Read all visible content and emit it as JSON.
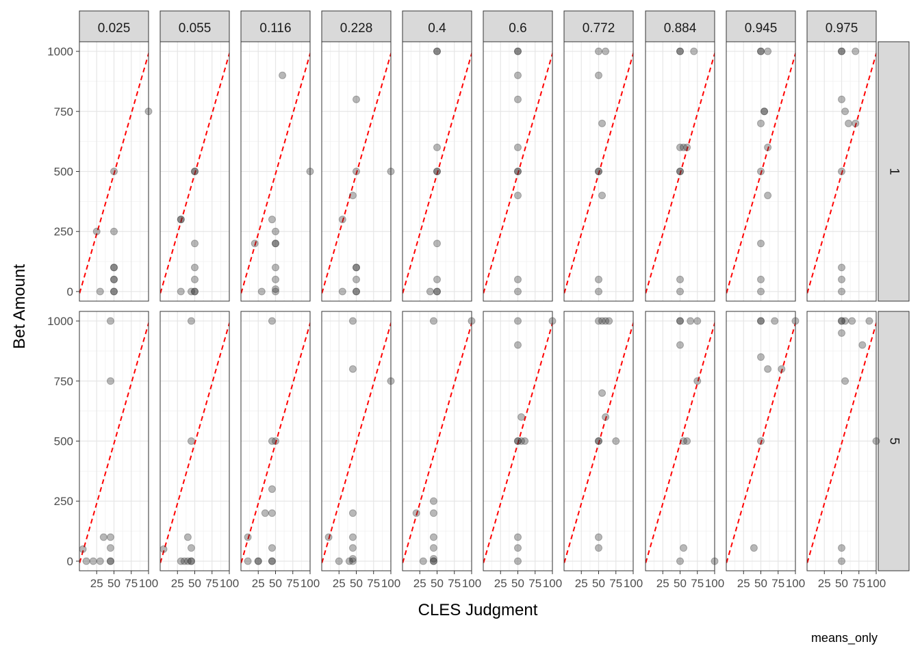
{
  "chart_data": {
    "type": "scatter",
    "facet_type": "grid",
    "xlabel": "CLES Judgment",
    "ylabel": "Bet Amount",
    "caption": "means_only",
    "xlim": [
      0,
      100
    ],
    "ylim": [
      -40,
      1040
    ],
    "x_ticks": [
      25,
      50,
      75,
      100
    ],
    "x_tick_labels": [
      "25",
      "50",
      "75",
      "100"
    ],
    "y_ticks": [
      0,
      250,
      500,
      750,
      1000
    ],
    "y_tick_labels": [
      "0",
      "250",
      "500",
      "750",
      "1000"
    ],
    "grid": true,
    "theme": "bw",
    "point_color": "#333333",
    "point_opacity": 0.35,
    "reference_line": {
      "slope": 10,
      "intercept": -10,
      "style": "dashed",
      "color": "#ff0000"
    },
    "col_facets": [
      "0.025",
      "0.055",
      "0.116",
      "0.228",
      "0.4",
      "0.6",
      "0.772",
      "0.884",
      "0.945",
      "0.975"
    ],
    "row_facets": [
      "1",
      "5"
    ],
    "panels": [
      [
        [
          [
            25,
            250
          ],
          [
            50,
            500
          ],
          [
            50,
            250
          ],
          [
            50,
            100
          ],
          [
            50,
            100
          ],
          [
            50,
            50
          ],
          [
            50,
            50
          ],
          [
            30,
            0
          ],
          [
            50,
            0
          ],
          [
            50,
            0
          ],
          [
            100,
            750
          ]
        ],
        [
          [
            30,
            300
          ],
          [
            30,
            300
          ],
          [
            50,
            500
          ],
          [
            50,
            500
          ],
          [
            50,
            200
          ],
          [
            50,
            100
          ],
          [
            50,
            50
          ],
          [
            30,
            0
          ],
          [
            45,
            0
          ],
          [
            50,
            0
          ],
          [
            50,
            0
          ]
        ],
        [
          [
            20,
            200
          ],
          [
            45,
            300
          ],
          [
            50,
            250
          ],
          [
            50,
            200
          ],
          [
            50,
            200
          ],
          [
            50,
            100
          ],
          [
            50,
            50
          ],
          [
            30,
            0
          ],
          [
            50,
            0
          ],
          [
            50,
            10
          ],
          [
            60,
            900
          ],
          [
            100,
            500
          ]
        ],
        [
          [
            30,
            300
          ],
          [
            45,
            400
          ],
          [
            50,
            500
          ],
          [
            50,
            800
          ],
          [
            50,
            100
          ],
          [
            50,
            100
          ],
          [
            50,
            50
          ],
          [
            30,
            0
          ],
          [
            50,
            0
          ],
          [
            50,
            0
          ],
          [
            100,
            500
          ]
        ],
        [
          [
            50,
            1000
          ],
          [
            50,
            1000
          ],
          [
            50,
            500
          ],
          [
            50,
            500
          ],
          [
            50,
            600
          ],
          [
            50,
            200
          ],
          [
            50,
            50
          ],
          [
            40,
            0
          ],
          [
            50,
            0
          ],
          [
            50,
            0
          ]
        ],
        [
          [
            50,
            1000
          ],
          [
            50,
            1000
          ],
          [
            50,
            900
          ],
          [
            50,
            800
          ],
          [
            50,
            600
          ],
          [
            50,
            500
          ],
          [
            50,
            500
          ],
          [
            50,
            400
          ],
          [
            50,
            50
          ],
          [
            50,
            0
          ]
        ],
        [
          [
            50,
            1000
          ],
          [
            60,
            1000
          ],
          [
            50,
            900
          ],
          [
            55,
            700
          ],
          [
            50,
            500
          ],
          [
            50,
            500
          ],
          [
            55,
            400
          ],
          [
            50,
            50
          ],
          [
            50,
            0
          ]
        ],
        [
          [
            50,
            1000
          ],
          [
            50,
            1000
          ],
          [
            70,
            1000
          ],
          [
            50,
            600
          ],
          [
            55,
            600
          ],
          [
            60,
            600
          ],
          [
            50,
            500
          ],
          [
            50,
            500
          ],
          [
            50,
            50
          ],
          [
            50,
            0
          ]
        ],
        [
          [
            50,
            1000
          ],
          [
            50,
            1000
          ],
          [
            60,
            1000
          ],
          [
            55,
            750
          ],
          [
            55,
            750
          ],
          [
            50,
            700
          ],
          [
            60,
            600
          ],
          [
            50,
            500
          ],
          [
            60,
            400
          ],
          [
            50,
            200
          ],
          [
            50,
            50
          ],
          [
            50,
            0
          ]
        ],
        [
          [
            50,
            1000
          ],
          [
            50,
            1000
          ],
          [
            70,
            1000
          ],
          [
            50,
            800
          ],
          [
            55,
            750
          ],
          [
            60,
            700
          ],
          [
            70,
            700
          ],
          [
            50,
            500
          ],
          [
            50,
            100
          ],
          [
            50,
            50
          ],
          [
            50,
            0
          ]
        ]
      ],
      [
        [
          [
            5,
            50
          ],
          [
            10,
            0
          ],
          [
            20,
            0
          ],
          [
            30,
            0
          ],
          [
            35,
            100
          ],
          [
            45,
            100
          ],
          [
            45,
            55
          ],
          [
            45,
            0
          ],
          [
            45,
            0
          ],
          [
            45,
            1000
          ],
          [
            45,
            750
          ]
        ],
        [
          [
            5,
            50
          ],
          [
            30,
            0
          ],
          [
            35,
            0
          ],
          [
            40,
            0
          ],
          [
            45,
            0
          ],
          [
            45,
            0
          ],
          [
            40,
            100
          ],
          [
            45,
            55
          ],
          [
            45,
            500
          ],
          [
            45,
            1000
          ]
        ],
        [
          [
            10,
            100
          ],
          [
            10,
            0
          ],
          [
            25,
            0
          ],
          [
            25,
            0
          ],
          [
            35,
            200
          ],
          [
            45,
            200
          ],
          [
            45,
            300
          ],
          [
            45,
            55
          ],
          [
            45,
            0
          ],
          [
            45,
            0
          ],
          [
            45,
            500
          ],
          [
            50,
            500
          ],
          [
            45,
            1000
          ]
        ],
        [
          [
            10,
            100
          ],
          [
            25,
            0
          ],
          [
            40,
            0
          ],
          [
            45,
            0
          ],
          [
            45,
            10
          ],
          [
            45,
            55
          ],
          [
            45,
            100
          ],
          [
            45,
            200
          ],
          [
            45,
            800
          ],
          [
            45,
            1000
          ],
          [
            100,
            750
          ]
        ],
        [
          [
            20,
            200
          ],
          [
            30,
            0
          ],
          [
            45,
            0
          ],
          [
            45,
            0
          ],
          [
            45,
            10
          ],
          [
            45,
            55
          ],
          [
            45,
            100
          ],
          [
            45,
            200
          ],
          [
            45,
            250
          ],
          [
            45,
            1000
          ],
          [
            100,
            1000
          ]
        ],
        [
          [
            50,
            1000
          ],
          [
            50,
            900
          ],
          [
            55,
            600
          ],
          [
            50,
            500
          ],
          [
            50,
            500
          ],
          [
            55,
            500
          ],
          [
            60,
            500
          ],
          [
            50,
            100
          ],
          [
            50,
            55
          ],
          [
            50,
            0
          ],
          [
            100,
            1000
          ]
        ],
        [
          [
            50,
            1000
          ],
          [
            55,
            1000
          ],
          [
            60,
            1000
          ],
          [
            65,
            1000
          ],
          [
            55,
            700
          ],
          [
            60,
            600
          ],
          [
            50,
            500
          ],
          [
            50,
            500
          ],
          [
            75,
            500
          ],
          [
            50,
            100
          ],
          [
            50,
            55
          ]
        ],
        [
          [
            50,
            1000
          ],
          [
            50,
            1000
          ],
          [
            65,
            1000
          ],
          [
            75,
            1000
          ],
          [
            50,
            900
          ],
          [
            75,
            750
          ],
          [
            55,
            500
          ],
          [
            60,
            500
          ],
          [
            55,
            55
          ],
          [
            50,
            0
          ],
          [
            100,
            0
          ]
        ],
        [
          [
            50,
            1000
          ],
          [
            50,
            1000
          ],
          [
            70,
            1000
          ],
          [
            100,
            1000
          ],
          [
            50,
            850
          ],
          [
            60,
            800
          ],
          [
            80,
            800
          ],
          [
            50,
            500
          ],
          [
            40,
            55
          ]
        ],
        [
          [
            50,
            1000
          ],
          [
            50,
            1000
          ],
          [
            55,
            1000
          ],
          [
            65,
            1000
          ],
          [
            90,
            1000
          ],
          [
            50,
            950
          ],
          [
            80,
            900
          ],
          [
            55,
            750
          ],
          [
            50,
            55
          ],
          [
            50,
            0
          ],
          [
            100,
            500
          ]
        ]
      ]
    ]
  }
}
